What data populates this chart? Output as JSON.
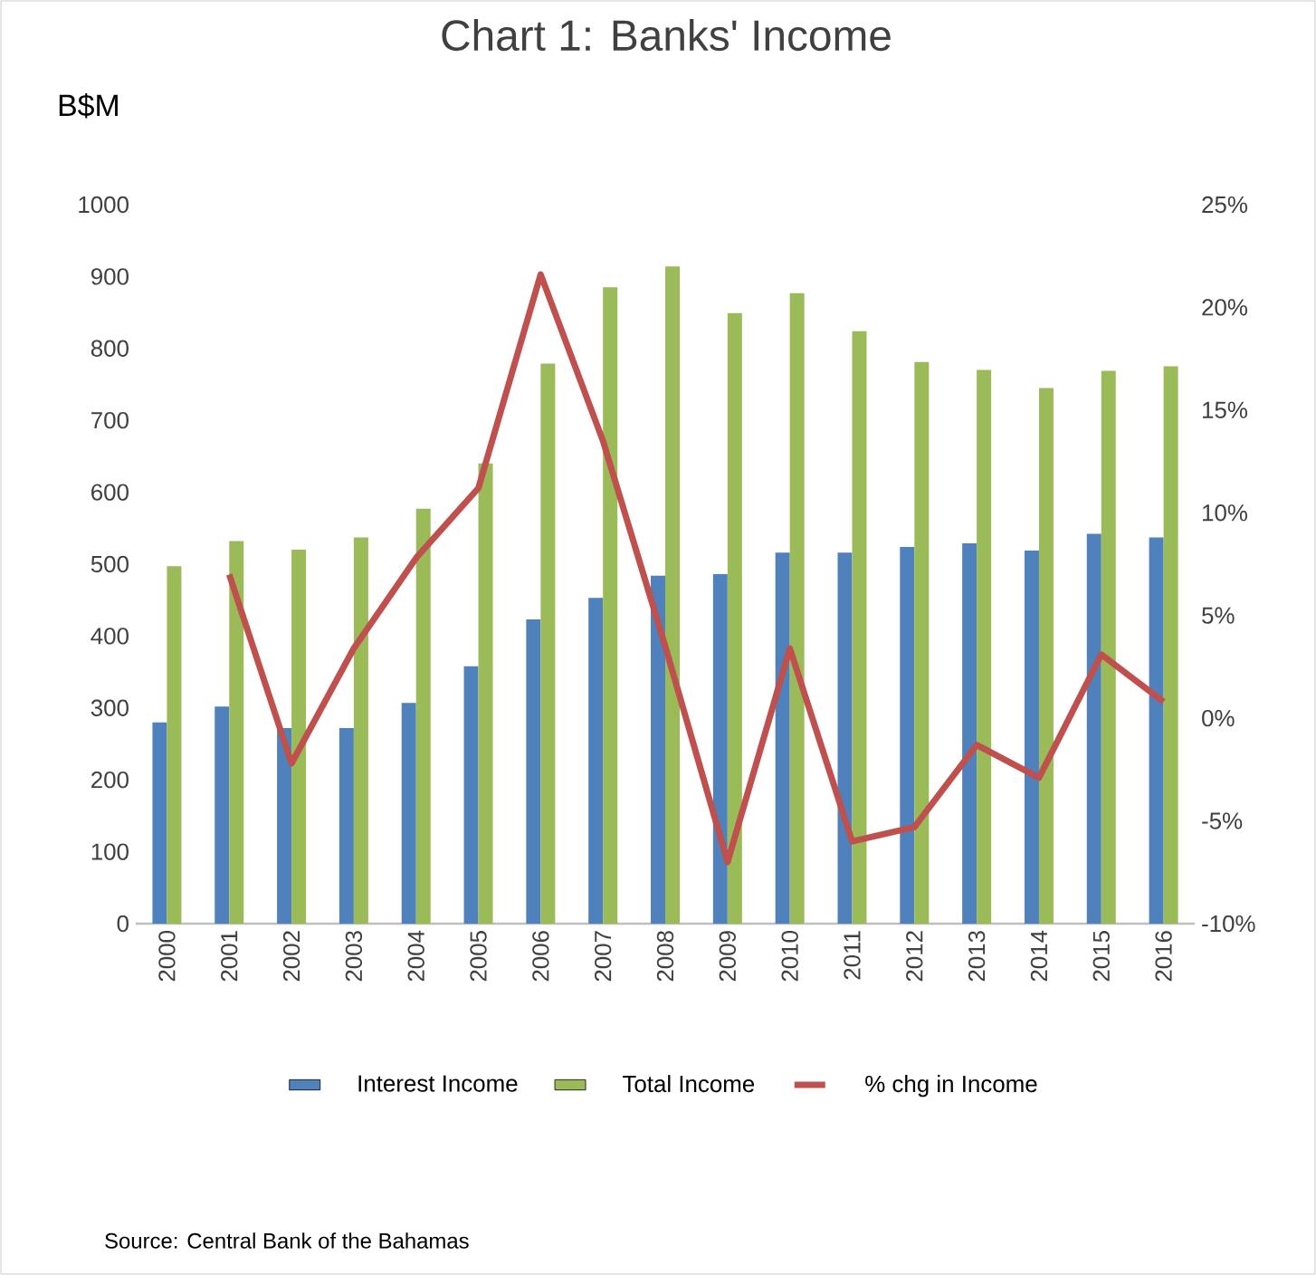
{
  "chart_data": {
    "type": "bar",
    "title": "Chart 1: Banks' Income",
    "ylabel": "B$M",
    "categories": [
      "2000",
      "2001",
      "2002",
      "2003",
      "2004",
      "2005",
      "2006",
      "2007",
      "2008",
      "2009",
      "2010",
      "2011",
      "2012",
      "2013",
      "2014",
      "2015",
      "2016"
    ],
    "series": [
      {
        "name": "Interest Income",
        "color": "#4f81bd",
        "values": [
          280,
          302,
          272,
          272,
          307,
          358,
          423,
          453,
          484,
          486,
          516,
          516,
          524,
          529,
          519,
          542,
          537
        ]
      },
      {
        "name": "Total Income",
        "color": "#9bbb59",
        "values": [
          497,
          532,
          520,
          537,
          577,
          640,
          779,
          885,
          914,
          849,
          877,
          824,
          781,
          770,
          745,
          769,
          775
        ]
      },
      {
        "name": "% chg in Income",
        "color": "#c0504d",
        "type": "line",
        "axis": "y2",
        "values": [
          null,
          7.0,
          -2.2,
          3.4,
          7.8,
          11.2,
          21.6,
          13.5,
          3.5,
          -7.0,
          3.4,
          -6.0,
          -5.3,
          -1.3,
          -2.9,
          3.1,
          0.8
        ]
      }
    ],
    "ylim": [
      0,
      1000
    ],
    "yticks": [
      0,
      100,
      200,
      300,
      400,
      500,
      600,
      700,
      800,
      900,
      1000
    ],
    "y2lim": [
      -10,
      25
    ],
    "y2ticks": [
      {
        "value": -10,
        "label": "-10%"
      },
      {
        "value": -5,
        "label": "-5%"
      },
      {
        "value": 0,
        "label": "0%"
      },
      {
        "value": 5,
        "label": "5%"
      },
      {
        "value": 10,
        "label": "10%"
      },
      {
        "value": 15,
        "label": "15%"
      },
      {
        "value": 20,
        "label": "20%"
      },
      {
        "value": 25,
        "label": "25%"
      }
    ],
    "legend": "bottom",
    "grid": false,
    "annotations": [
      "Source: Central Bank of the Bahamas"
    ]
  }
}
